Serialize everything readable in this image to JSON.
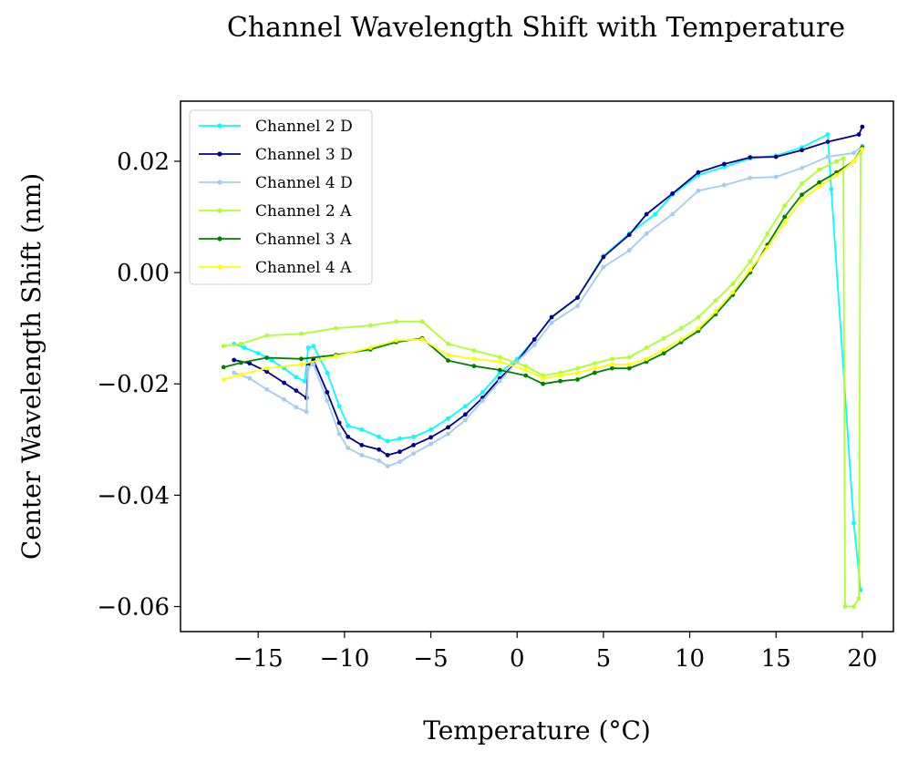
{
  "chart_data": {
    "type": "line",
    "title": "Channel Wavelength Shift with Temperature",
    "xlabel": "Temperature (°C)",
    "ylabel": "Center Wavelength Shift (nm)",
    "xlim": [
      -19.5,
      21.8
    ],
    "ylim": [
      -0.0645,
      0.0308
    ],
    "xticks": [
      -15,
      -10,
      -5,
      0,
      5,
      10,
      15,
      20
    ],
    "xtick_labels": [
      "−15",
      "−10",
      "−5",
      "0",
      "5",
      "10",
      "15",
      "20"
    ],
    "yticks": [
      0.02,
      0.0,
      -0.02,
      -0.04,
      -0.06
    ],
    "ytick_labels": [
      "0.02",
      "0.00",
      "−0.02",
      "−0.04",
      "−0.06"
    ],
    "legend_position": "top-left",
    "series": [
      {
        "name": "Channel 2 D",
        "color": "#00ffff",
        "points": [
          [
            -16.4,
            -0.0128
          ],
          [
            -15.8,
            -0.0135
          ],
          [
            -15.0,
            -0.0145
          ],
          [
            -14.2,
            -0.0158
          ],
          [
            -13.5,
            -0.0172
          ],
          [
            -12.8,
            -0.0188
          ],
          [
            -12.3,
            -0.0195
          ],
          [
            -12.1,
            -0.0135
          ],
          [
            -11.8,
            -0.0132
          ],
          [
            -11.0,
            -0.018
          ],
          [
            -10.3,
            -0.024
          ],
          [
            -9.8,
            -0.0275
          ],
          [
            -9.0,
            -0.0282
          ],
          [
            -8.0,
            -0.0295
          ],
          [
            -7.5,
            -0.0303
          ],
          [
            -6.8,
            -0.0298
          ],
          [
            -6.0,
            -0.0295
          ],
          [
            -5.0,
            -0.0282
          ],
          [
            -4.0,
            -0.0262
          ],
          [
            -3.0,
            -0.024
          ],
          [
            -2.0,
            -0.0215
          ],
          [
            -1.0,
            -0.018
          ],
          [
            0.0,
            -0.0155
          ],
          [
            1.0,
            -0.012
          ],
          [
            2.0,
            -0.008
          ],
          [
            3.5,
            -0.0045
          ],
          [
            5.0,
            0.003
          ],
          [
            6.5,
            0.007
          ],
          [
            8.0,
            0.0105
          ],
          [
            9.0,
            0.014
          ],
          [
            10.5,
            0.0175
          ],
          [
            12.0,
            0.019
          ],
          [
            13.5,
            0.0205
          ],
          [
            15.0,
            0.021
          ],
          [
            16.5,
            0.0225
          ],
          [
            18.0,
            0.0248
          ],
          [
            18.2,
            0.015
          ],
          [
            19.5,
            -0.045
          ],
          [
            19.9,
            -0.057
          ]
        ]
      },
      {
        "name": "Channel 3 D",
        "color": "#00008b",
        "points": [
          [
            -16.4,
            -0.0157
          ],
          [
            -15.5,
            -0.0163
          ],
          [
            -14.5,
            -0.0178
          ],
          [
            -13.5,
            -0.0198
          ],
          [
            -12.8,
            -0.0212
          ],
          [
            -12.2,
            -0.0225
          ],
          [
            -12.1,
            -0.0165
          ],
          [
            -11.8,
            -0.0157
          ],
          [
            -11.0,
            -0.0215
          ],
          [
            -10.3,
            -0.027
          ],
          [
            -9.8,
            -0.0295
          ],
          [
            -9.0,
            -0.031
          ],
          [
            -8.0,
            -0.0318
          ],
          [
            -7.5,
            -0.0328
          ],
          [
            -6.8,
            -0.0322
          ],
          [
            -6.0,
            -0.031
          ],
          [
            -5.0,
            -0.0296
          ],
          [
            -4.0,
            -0.0278
          ],
          [
            -3.0,
            -0.0255
          ],
          [
            -2.0,
            -0.0225
          ],
          [
            -1.0,
            -0.019
          ],
          [
            0.0,
            -0.016
          ],
          [
            1.0,
            -0.012
          ],
          [
            2.0,
            -0.008
          ],
          [
            3.5,
            -0.0045
          ],
          [
            5.0,
            0.0028
          ],
          [
            6.5,
            0.0068
          ],
          [
            7.5,
            0.0105
          ],
          [
            9.0,
            0.0142
          ],
          [
            10.5,
            0.018
          ],
          [
            12.0,
            0.0195
          ],
          [
            13.5,
            0.0207
          ],
          [
            15.0,
            0.0208
          ],
          [
            16.5,
            0.022
          ],
          [
            18.0,
            0.0235
          ],
          [
            19.8,
            0.0248
          ],
          [
            20.0,
            0.0262
          ]
        ]
      },
      {
        "name": "Channel 4 D",
        "color": "#a4cbf2",
        "points": [
          [
            -16.4,
            -0.018
          ],
          [
            -15.5,
            -0.019
          ],
          [
            -14.5,
            -0.021
          ],
          [
            -13.5,
            -0.0228
          ],
          [
            -12.8,
            -0.0242
          ],
          [
            -12.2,
            -0.025
          ],
          [
            -12.1,
            -0.017
          ],
          [
            -11.8,
            -0.0165
          ],
          [
            -11.0,
            -0.023
          ],
          [
            -10.3,
            -0.029
          ],
          [
            -9.8,
            -0.0315
          ],
          [
            -9.0,
            -0.0328
          ],
          [
            -8.0,
            -0.0338
          ],
          [
            -7.5,
            -0.0348
          ],
          [
            -6.8,
            -0.034
          ],
          [
            -6.0,
            -0.0325
          ],
          [
            -5.0,
            -0.0308
          ],
          [
            -4.0,
            -0.029
          ],
          [
            -3.0,
            -0.0265
          ],
          [
            -2.0,
            -0.023
          ],
          [
            -1.0,
            -0.0195
          ],
          [
            0.0,
            -0.016
          ],
          [
            1.0,
            -0.013
          ],
          [
            2.0,
            -0.009
          ],
          [
            3.5,
            -0.006
          ],
          [
            5.0,
            0.001
          ],
          [
            6.5,
            0.004
          ],
          [
            7.5,
            0.007
          ],
          [
            9.0,
            0.0105
          ],
          [
            10.5,
            0.0147
          ],
          [
            12.0,
            0.0157
          ],
          [
            13.5,
            0.017
          ],
          [
            15.0,
            0.0172
          ],
          [
            16.5,
            0.0188
          ],
          [
            18.0,
            0.0208
          ],
          [
            19.5,
            0.0215
          ],
          [
            20.0,
            0.0228
          ]
        ]
      },
      {
        "name": "Channel 2 A",
        "color": "#adff2f",
        "points": [
          [
            -17.0,
            -0.0132
          ],
          [
            -16.0,
            -0.0128
          ],
          [
            -14.5,
            -0.0113
          ],
          [
            -12.5,
            -0.011
          ],
          [
            -10.5,
            -0.01
          ],
          [
            -8.5,
            -0.0095
          ],
          [
            -7.0,
            -0.0088
          ],
          [
            -5.5,
            -0.0088
          ],
          [
            -4.0,
            -0.0128
          ],
          [
            -2.5,
            -0.014
          ],
          [
            -1.0,
            -0.0152
          ],
          [
            0.5,
            -0.0168
          ],
          [
            1.5,
            -0.0185
          ],
          [
            2.5,
            -0.018
          ],
          [
            3.5,
            -0.0172
          ],
          [
            4.5,
            -0.0163
          ],
          [
            5.5,
            -0.0155
          ],
          [
            6.5,
            -0.0152
          ],
          [
            7.5,
            -0.0135
          ],
          [
            8.5,
            -0.0118
          ],
          [
            9.5,
            -0.01
          ],
          [
            10.5,
            -0.008
          ],
          [
            11.5,
            -0.005
          ],
          [
            12.5,
            -0.002
          ],
          [
            13.5,
            0.002
          ],
          [
            14.5,
            0.007
          ],
          [
            15.5,
            0.012
          ],
          [
            16.5,
            0.016
          ],
          [
            17.5,
            0.0185
          ],
          [
            18.5,
            0.02
          ],
          [
            18.9,
            0.0205
          ],
          [
            19.0,
            -0.06
          ],
          [
            19.5,
            -0.06
          ],
          [
            19.8,
            -0.0585
          ],
          [
            19.9,
            0.0215
          ]
        ]
      },
      {
        "name": "Channel 3 A",
        "color": "#008000",
        "points": [
          [
            -17.0,
            -0.017
          ],
          [
            -16.0,
            -0.0162
          ],
          [
            -14.5,
            -0.0153
          ],
          [
            -12.5,
            -0.0155
          ],
          [
            -10.5,
            -0.0148
          ],
          [
            -8.5,
            -0.0138
          ],
          [
            -7.0,
            -0.0125
          ],
          [
            -5.5,
            -0.0118
          ],
          [
            -4.0,
            -0.0158
          ],
          [
            -2.5,
            -0.0168
          ],
          [
            -1.0,
            -0.0175
          ],
          [
            0.5,
            -0.0185
          ],
          [
            1.5,
            -0.02
          ],
          [
            2.5,
            -0.0195
          ],
          [
            3.5,
            -0.0192
          ],
          [
            4.5,
            -0.018
          ],
          [
            5.5,
            -0.0172
          ],
          [
            6.5,
            -0.0172
          ],
          [
            7.5,
            -0.016
          ],
          [
            8.5,
            -0.0145
          ],
          [
            9.5,
            -0.0125
          ],
          [
            10.5,
            -0.0105
          ],
          [
            11.5,
            -0.0075
          ],
          [
            12.5,
            -0.004
          ],
          [
            13.5,
            0.0
          ],
          [
            14.5,
            0.005
          ],
          [
            15.5,
            0.01
          ],
          [
            16.5,
            0.014
          ],
          [
            17.5,
            0.0162
          ],
          [
            18.5,
            0.018
          ],
          [
            19.5,
            0.02
          ],
          [
            20.0,
            0.0225
          ]
        ]
      },
      {
        "name": "Channel 4 A",
        "color": "#ffff00",
        "points": [
          [
            -17.0,
            -0.0192
          ],
          [
            -16.0,
            -0.0183
          ],
          [
            -14.5,
            -0.0172
          ],
          [
            -12.5,
            -0.0165
          ],
          [
            -10.5,
            -0.015
          ],
          [
            -8.5,
            -0.0135
          ],
          [
            -7.0,
            -0.0122
          ],
          [
            -5.5,
            -0.012
          ],
          [
            -4.0,
            -0.0148
          ],
          [
            -2.5,
            -0.0155
          ],
          [
            -1.0,
            -0.016
          ],
          [
            0.5,
            -0.0175
          ],
          [
            1.5,
            -0.019
          ],
          [
            2.5,
            -0.0185
          ],
          [
            3.5,
            -0.018
          ],
          [
            4.5,
            -0.0172
          ],
          [
            5.5,
            -0.0165
          ],
          [
            6.5,
            -0.0165
          ],
          [
            7.5,
            -0.0155
          ],
          [
            8.5,
            -0.0138
          ],
          [
            9.5,
            -0.012
          ],
          [
            10.5,
            -0.01
          ],
          [
            11.5,
            -0.007
          ],
          [
            12.5,
            -0.0035
          ],
          [
            13.5,
            0.0005
          ],
          [
            14.5,
            0.0045
          ],
          [
            15.5,
            0.009
          ],
          [
            16.5,
            0.013
          ],
          [
            17.5,
            0.0155
          ],
          [
            18.5,
            0.0175
          ],
          [
            19.5,
            0.02
          ],
          [
            20.0,
            0.0222
          ]
        ]
      }
    ]
  }
}
